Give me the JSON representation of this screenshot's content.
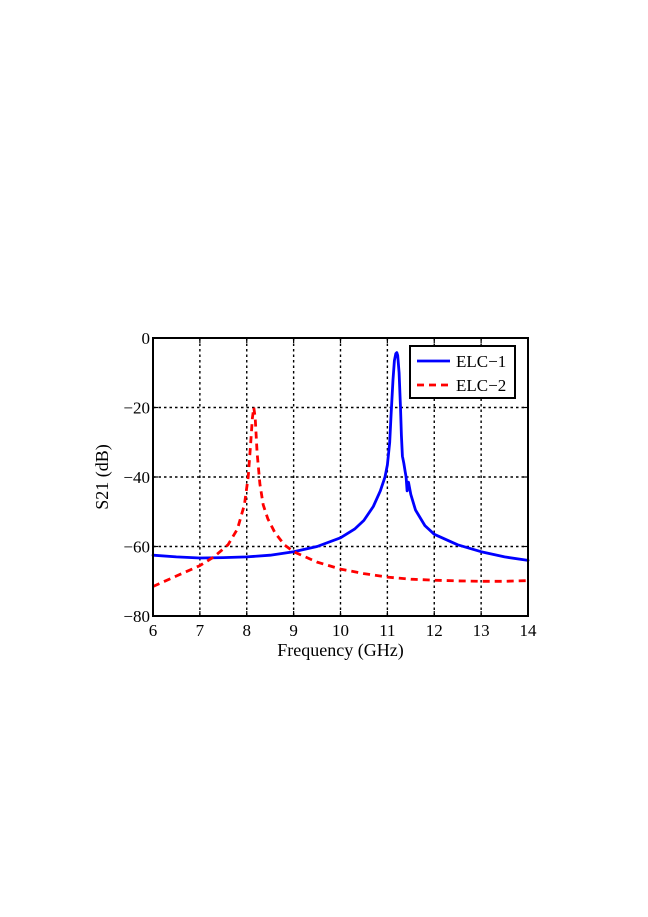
{
  "chart_data": {
    "type": "line",
    "xlabel": "Frequency (GHz)",
    "ylabel": "S21 (dB)",
    "xlim": [
      6,
      14
    ],
    "ylim": [
      -80,
      0
    ],
    "xticks": [
      6,
      7,
      8,
      9,
      10,
      11,
      12,
      13,
      14
    ],
    "yticks": [
      0,
      -20,
      -40,
      -60,
      -80
    ],
    "ytick_labels": [
      "0",
      "−20",
      "−40",
      "−60",
      "−80"
    ],
    "grid": true,
    "legend_position": "top-right",
    "series": [
      {
        "name": "ELC−1",
        "color": "#0000ff",
        "style": "solid",
        "x": [
          6.0,
          6.5,
          7.0,
          7.5,
          8.0,
          8.5,
          9.0,
          9.5,
          10.0,
          10.3,
          10.5,
          10.7,
          10.85,
          10.95,
          11.0,
          11.05,
          11.08,
          11.12,
          11.15,
          11.18,
          11.2,
          11.22,
          11.25,
          11.28,
          11.3,
          11.32,
          11.35,
          11.38,
          11.4,
          11.42,
          11.45,
          11.5,
          11.6,
          11.8,
          12.0,
          12.5,
          13.0,
          13.5,
          14.0
        ],
        "y": [
          -62.5,
          -63.0,
          -63.3,
          -63.2,
          -63.0,
          -62.5,
          -61.5,
          -60.0,
          -57.5,
          -55.0,
          -52.5,
          -48.5,
          -44.0,
          -40.0,
          -36.5,
          -30.0,
          -22.0,
          -12.0,
          -6.5,
          -4.5,
          -4.2,
          -5.0,
          -10.0,
          -20.0,
          -28.0,
          -34.0,
          -36.0,
          -38.5,
          -40.0,
          -44.0,
          -41.5,
          -45.0,
          -49.5,
          -54.0,
          -56.5,
          -59.5,
          -61.5,
          -63.0,
          -64.0
        ]
      },
      {
        "name": "ELC−2",
        "color": "#ff0000",
        "style": "dashed",
        "x": [
          6.0,
          6.5,
          7.0,
          7.3,
          7.6,
          7.8,
          7.95,
          8.03,
          8.08,
          8.12,
          8.15,
          8.18,
          8.22,
          8.28,
          8.35,
          8.45,
          8.6,
          8.8,
          9.0,
          9.5,
          10.0,
          10.5,
          11.0,
          11.5,
          12.0,
          12.5,
          13.0,
          13.5,
          14.0
        ],
        "y": [
          -71.5,
          -68.5,
          -65.5,
          -63.0,
          -59.5,
          -55.0,
          -48.0,
          -40.0,
          -31.0,
          -23.0,
          -20.0,
          -23.0,
          -33.0,
          -42.0,
          -48.0,
          -52.0,
          -56.0,
          -59.5,
          -61.5,
          -64.5,
          -66.5,
          -67.8,
          -68.8,
          -69.4,
          -69.7,
          -69.9,
          -70.0,
          -70.0,
          -69.8
        ]
      }
    ]
  }
}
